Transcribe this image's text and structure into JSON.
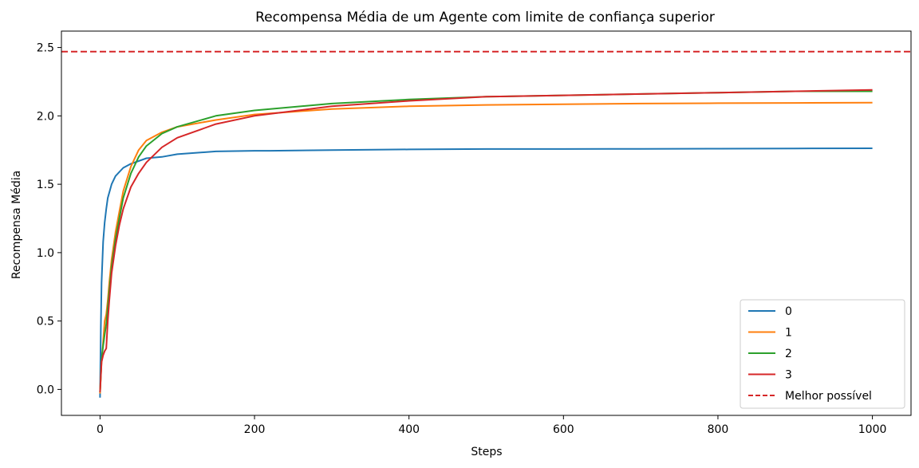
{
  "chart_data": {
    "type": "line",
    "title": "Recompensa Média de um Agente com limite de confiança superior",
    "xlabel": "Steps",
    "ylabel": "Recompensa Média",
    "xlim": [
      -50,
      1050
    ],
    "ylim": [
      -0.19,
      2.62
    ],
    "xticks": [
      0,
      200,
      400,
      600,
      800,
      1000
    ],
    "xtick_labels": [
      "0",
      "200",
      "400",
      "600",
      "800",
      "1000"
    ],
    "yticks": [
      0.0,
      0.5,
      1.0,
      1.5,
      2.0,
      2.5
    ],
    "ytick_labels": [
      "0.0",
      "0.5",
      "1.0",
      "1.5",
      "2.0",
      "2.5"
    ],
    "grid": false,
    "legend_position": "bottom-right",
    "reference_line": {
      "name": "Melhor possível",
      "y": 2.47,
      "color": "#d62728",
      "style": "dashed"
    },
    "series": [
      {
        "name": "0",
        "color": "#1f77b4",
        "x": [
          0,
          1,
          2,
          4,
          6,
          8,
          10,
          15,
          20,
          30,
          40,
          50,
          60,
          80,
          100,
          150,
          200,
          220,
          300,
          400,
          500,
          600,
          700,
          800,
          900,
          1000
        ],
        "y": [
          -0.06,
          0.45,
          0.78,
          1.08,
          1.22,
          1.32,
          1.4,
          1.5,
          1.56,
          1.62,
          1.65,
          1.67,
          1.69,
          1.7,
          1.72,
          1.74,
          1.745,
          1.745,
          1.75,
          1.755,
          1.758,
          1.758,
          1.759,
          1.76,
          1.762,
          1.763
        ]
      },
      {
        "name": "1",
        "color": "#ff7f0e",
        "x": [
          0,
          2,
          4,
          6,
          8,
          10,
          12,
          15,
          20,
          25,
          30,
          40,
          50,
          60,
          80,
          100,
          150,
          200,
          300,
          400,
          500,
          600,
          700,
          800,
          900,
          1000
        ],
        "y": [
          -0.03,
          0.2,
          0.35,
          0.5,
          0.55,
          0.65,
          0.78,
          0.95,
          1.15,
          1.3,
          1.45,
          1.63,
          1.75,
          1.82,
          1.88,
          1.92,
          1.97,
          2.01,
          2.05,
          2.07,
          2.08,
          2.085,
          2.09,
          2.093,
          2.095,
          2.097
        ]
      },
      {
        "name": "2",
        "color": "#2ca02c",
        "x": [
          0,
          2,
          4,
          6,
          8,
          10,
          12,
          15,
          20,
          25,
          30,
          40,
          50,
          60,
          80,
          100,
          150,
          200,
          300,
          400,
          500,
          600,
          700,
          800,
          900,
          1000
        ],
        "y": [
          -0.02,
          0.22,
          0.32,
          0.4,
          0.48,
          0.6,
          0.72,
          0.9,
          1.1,
          1.25,
          1.4,
          1.58,
          1.7,
          1.78,
          1.87,
          1.92,
          2.0,
          2.04,
          2.09,
          2.12,
          2.14,
          2.15,
          2.16,
          2.17,
          2.18,
          2.18
        ]
      },
      {
        "name": "3",
        "color": "#d62728",
        "x": [
          0,
          2,
          4,
          6,
          8,
          10,
          12,
          15,
          20,
          25,
          30,
          40,
          50,
          60,
          80,
          100,
          150,
          200,
          300,
          400,
          500,
          600,
          700,
          800,
          900,
          1000
        ],
        "y": [
          -0.02,
          0.2,
          0.25,
          0.28,
          0.3,
          0.5,
          0.65,
          0.85,
          1.05,
          1.2,
          1.32,
          1.48,
          1.58,
          1.66,
          1.77,
          1.84,
          1.94,
          2.0,
          2.07,
          2.11,
          2.14,
          2.15,
          2.16,
          2.17,
          2.18,
          2.19
        ]
      }
    ]
  }
}
